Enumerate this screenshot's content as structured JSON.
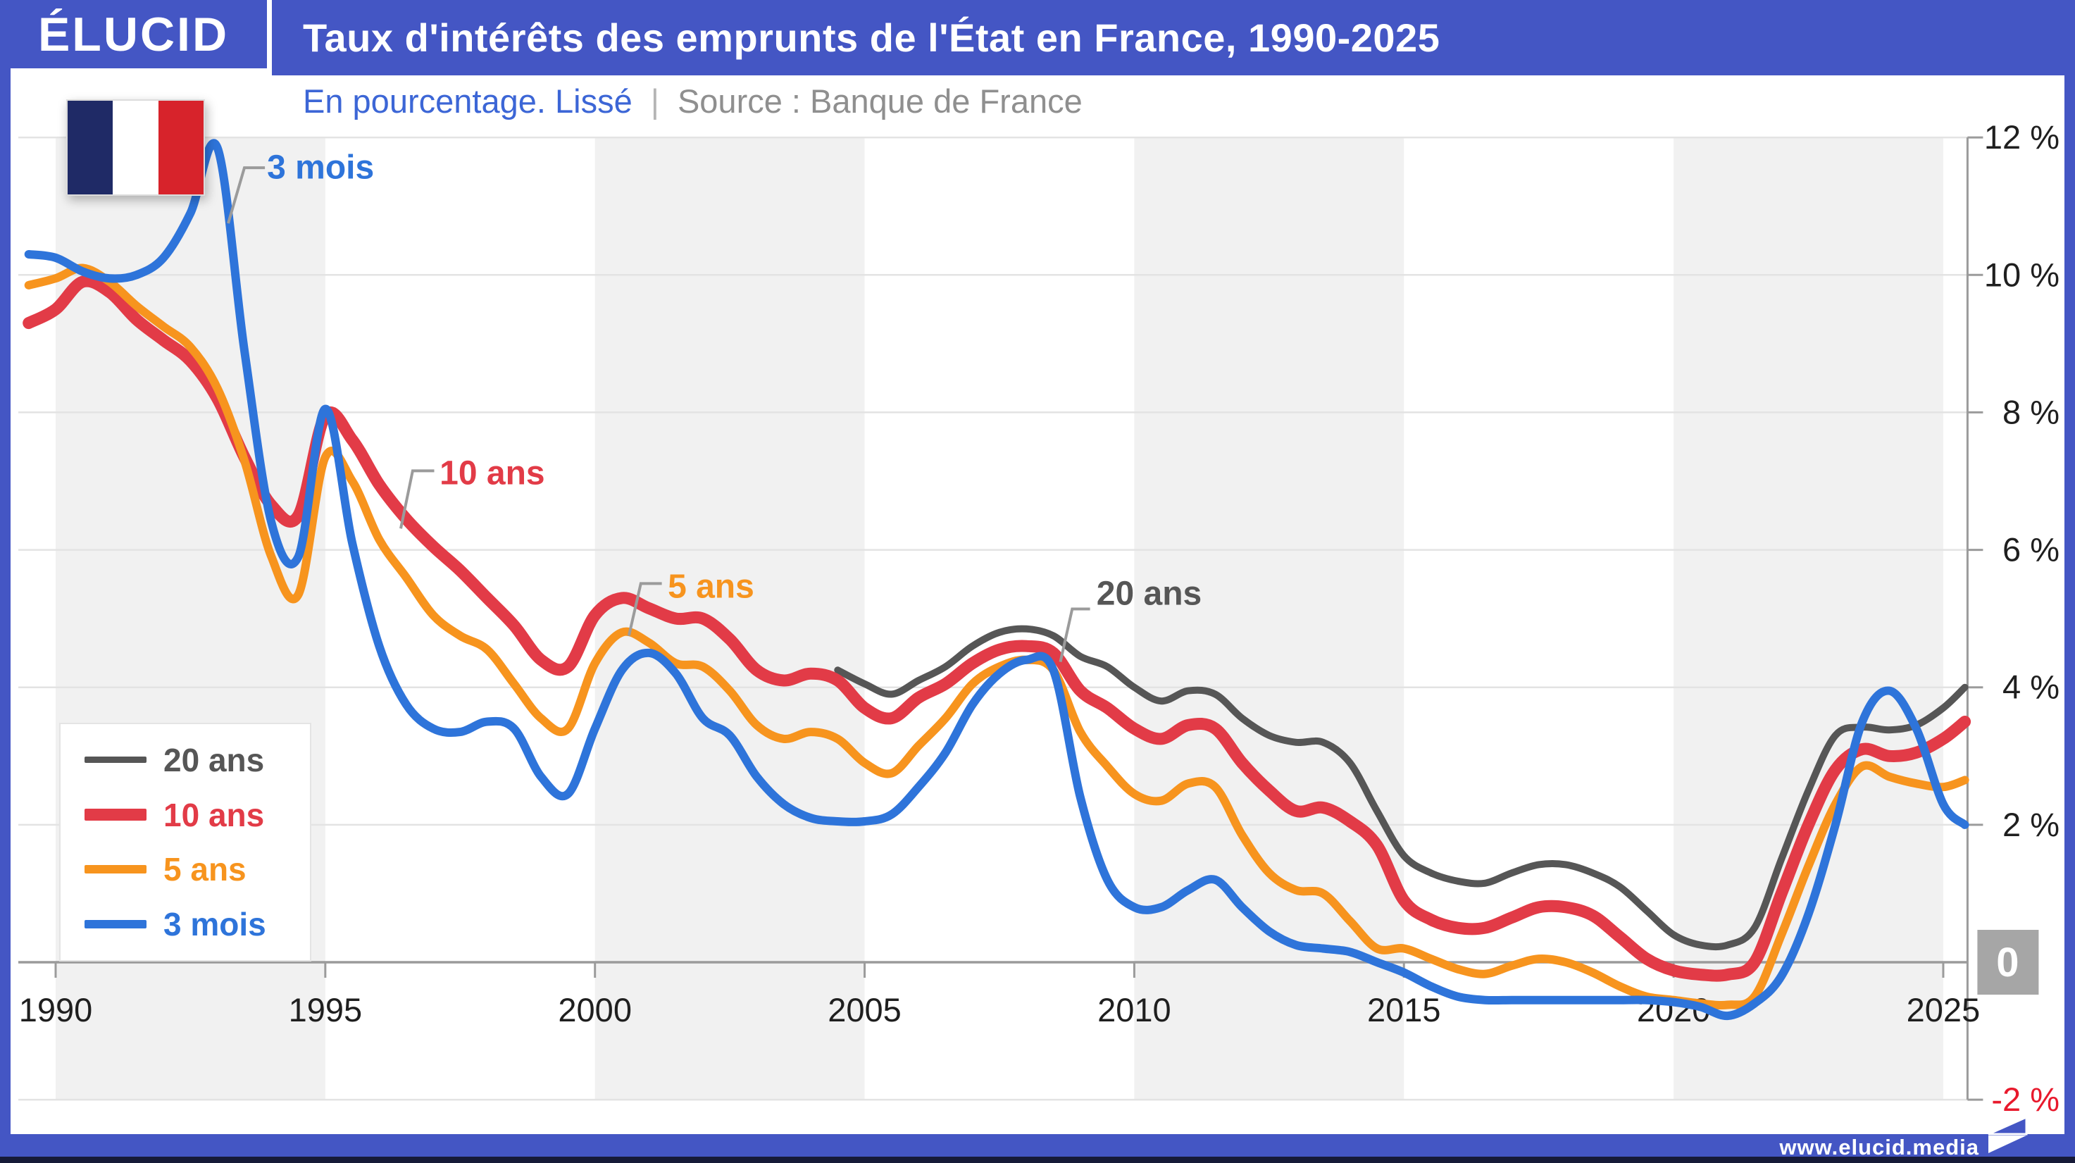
{
  "colors": {
    "brand_blue": "#4456c4",
    "footer_dark": "#161a38",
    "band_gray": "#f1f1f1",
    "gridline": "#e3e3e3",
    "axis_gray": "#9b9b9b",
    "tick_label": "#1f1f1f",
    "negative_label_red": "#e8192c",
    "zero_box_gray": "#a6a6a6",
    "subtitle_blue": "#3c66d6",
    "subtitle_gray": "#8f8f8f"
  },
  "header": {
    "logo": "ÉLUCID",
    "title": "Taux d'intérêts des emprunts de l'État en France, 1990-2025"
  },
  "subtitle": {
    "note": "En pourcentage. Lissé",
    "separator": "|",
    "source": "Source : Banque de France"
  },
  "flag": {
    "name": "french-flag",
    "stripe_colors": [
      "#1f2a66",
      "#ffffff",
      "#d7232b"
    ]
  },
  "legend": {
    "items": [
      {
        "label": "20 ans",
        "color": "#565656",
        "thickness": 9
      },
      {
        "label": "10 ans",
        "color": "#e23b47",
        "thickness": 17
      },
      {
        "label": "5 ans",
        "color": "#f7941e",
        "thickness": 12
      },
      {
        "label": "3 mois",
        "color": "#2e74da",
        "thickness": 12
      }
    ]
  },
  "footer": {
    "url": "www.elucid.media"
  },
  "chart_data": {
    "type": "line",
    "title": "Taux d'intérêts des emprunts de l'État en France, 1990-2025",
    "subtitle": "En pourcentage. Lissé",
    "source": "Source : Banque de France",
    "xlabel": "",
    "ylabel": "%",
    "xlim": [
      1989.5,
      2025.7
    ],
    "ylim": [
      -2,
      12
    ],
    "grid": true,
    "legend_position": "middle-left",
    "x_ticks": [
      1990,
      1995,
      2000,
      2005,
      2010,
      2015,
      2020,
      2025
    ],
    "y_ticks": [
      {
        "value": 12,
        "label": "12 %"
      },
      {
        "value": 10,
        "label": "10 %"
      },
      {
        "value": 8,
        "label": "8 %"
      },
      {
        "value": 6,
        "label": "6 %"
      },
      {
        "value": 4,
        "label": "4 %"
      },
      {
        "value": 2,
        "label": "2 %"
      },
      {
        "value": 0,
        "label": "0",
        "boxed": true
      },
      {
        "value": -2,
        "label": "-2 %",
        "color": "#e8192c"
      }
    ],
    "shaded_bands": [
      [
        1990,
        1995
      ],
      [
        2000,
        2005
      ],
      [
        2010,
        2015
      ],
      [
        2020,
        2025
      ]
    ],
    "x": [
      1989.5,
      1990,
      1990.5,
      1991,
      1991.5,
      1992,
      1992.5,
      1993,
      1993.5,
      1994,
      1994.5,
      1995,
      1995.5,
      1996,
      1996.5,
      1997,
      1997.5,
      1998,
      1998.5,
      1999,
      1999.5,
      2000,
      2000.5,
      2001,
      2001.5,
      2002,
      2002.5,
      2003,
      2003.5,
      2004,
      2004.5,
      2005,
      2005.5,
      2006,
      2006.5,
      2007,
      2007.5,
      2008,
      2008.5,
      2009,
      2009.5,
      2010,
      2010.5,
      2011,
      2011.5,
      2012,
      2012.5,
      2013,
      2013.5,
      2014,
      2014.5,
      2015,
      2015.5,
      2016,
      2016.5,
      2017,
      2017.5,
      2018,
      2018.5,
      2019,
      2019.5,
      2020,
      2020.5,
      2021,
      2021.5,
      2022,
      2022.5,
      2023,
      2023.5,
      2024,
      2024.5,
      2025,
      2025.4
    ],
    "series": [
      {
        "name": "20 ans",
        "color": "#565656",
        "width": 10,
        "values": [
          null,
          null,
          null,
          null,
          null,
          null,
          null,
          null,
          null,
          null,
          null,
          null,
          null,
          null,
          null,
          null,
          null,
          null,
          null,
          null,
          null,
          null,
          null,
          null,
          null,
          null,
          null,
          null,
          null,
          null,
          4.25,
          4.05,
          3.9,
          4.1,
          4.3,
          4.6,
          4.8,
          4.85,
          4.75,
          4.45,
          4.3,
          4.0,
          3.8,
          3.95,
          3.9,
          3.55,
          3.3,
          3.2,
          3.2,
          2.9,
          2.2,
          1.55,
          1.3,
          1.18,
          1.15,
          1.3,
          1.42,
          1.42,
          1.3,
          1.1,
          0.75,
          0.4,
          0.25,
          0.25,
          0.5,
          1.5,
          2.5,
          3.3,
          3.42,
          3.38,
          3.45,
          3.7,
          4.0
        ]
      },
      {
        "name": "10 ans",
        "color": "#e23b47",
        "width": 17,
        "values": [
          9.3,
          9.5,
          9.9,
          9.75,
          9.35,
          9.05,
          8.75,
          8.2,
          7.35,
          6.65,
          6.5,
          7.95,
          7.6,
          6.95,
          6.45,
          6.05,
          5.7,
          5.3,
          4.9,
          4.4,
          4.3,
          5.05,
          5.3,
          5.15,
          5.0,
          5.0,
          4.7,
          4.25,
          4.1,
          4.2,
          4.1,
          3.7,
          3.55,
          3.85,
          4.05,
          4.35,
          4.55,
          4.6,
          4.5,
          3.95,
          3.7,
          3.4,
          3.25,
          3.45,
          3.4,
          2.9,
          2.5,
          2.2,
          2.25,
          2.05,
          1.7,
          0.9,
          0.62,
          0.5,
          0.5,
          0.65,
          0.8,
          0.8,
          0.68,
          0.37,
          0.05,
          -0.12,
          -0.18,
          -0.18,
          0.0,
          1.0,
          2.0,
          2.8,
          3.1,
          3.0,
          3.05,
          3.25,
          3.5
        ]
      },
      {
        "name": "5 ans",
        "color": "#f7941e",
        "width": 12,
        "values": [
          9.85,
          9.95,
          10.1,
          9.9,
          9.55,
          9.25,
          8.95,
          8.35,
          7.3,
          5.9,
          5.35,
          7.35,
          7.0,
          6.15,
          5.6,
          5.05,
          4.75,
          4.55,
          4.05,
          3.55,
          3.4,
          4.35,
          4.8,
          4.65,
          4.35,
          4.3,
          3.95,
          3.45,
          3.25,
          3.35,
          3.25,
          2.9,
          2.75,
          3.15,
          3.55,
          4.05,
          4.3,
          4.4,
          4.25,
          3.35,
          2.85,
          2.45,
          2.35,
          2.6,
          2.55,
          1.85,
          1.3,
          1.05,
          1.0,
          0.6,
          0.2,
          0.2,
          0.05,
          -0.1,
          -0.17,
          -0.05,
          0.05,
          0.0,
          -0.15,
          -0.35,
          -0.5,
          -0.55,
          -0.6,
          -0.62,
          -0.5,
          0.4,
          1.4,
          2.3,
          2.85,
          2.7,
          2.6,
          2.55,
          2.65
        ]
      },
      {
        "name": "3 mois",
        "color": "#2e74da",
        "width": 12,
        "values": [
          10.3,
          10.25,
          10.05,
          9.95,
          10.0,
          10.25,
          10.9,
          11.85,
          8.9,
          6.4,
          5.9,
          8.05,
          6.1,
          4.6,
          3.75,
          3.4,
          3.35,
          3.5,
          3.4,
          2.7,
          2.45,
          3.4,
          4.25,
          4.5,
          4.2,
          3.55,
          3.3,
          2.7,
          2.3,
          2.1,
          2.05,
          2.05,
          2.15,
          2.55,
          3.05,
          3.75,
          4.2,
          4.4,
          4.25,
          2.4,
          1.2,
          0.8,
          0.8,
          1.05,
          1.2,
          0.8,
          0.45,
          0.25,
          0.2,
          0.15,
          0.0,
          -0.15,
          -0.35,
          -0.5,
          -0.55,
          -0.55,
          -0.55,
          -0.55,
          -0.55,
          -0.55,
          -0.55,
          -0.58,
          -0.65,
          -0.78,
          -0.6,
          -0.2,
          0.7,
          2.0,
          3.5,
          3.95,
          3.4,
          2.3,
          2.0
        ]
      }
    ],
    "annotations": [
      {
        "label": "3 mois",
        "color": "#2e74da",
        "text_at": [
          1993.92,
          11.55
        ],
        "leader": [
          [
            1993.2,
            10.75
          ],
          [
            1993.5,
            11.56
          ],
          [
            1993.88,
            11.56
          ]
        ]
      },
      {
        "label": "10 ans",
        "color": "#e23b47",
        "text_at": [
          1997.12,
          7.1
        ],
        "leader": [
          [
            1996.4,
            6.31
          ],
          [
            1996.62,
            7.15
          ],
          [
            1997.02,
            7.15
          ]
        ]
      },
      {
        "label": "5 ans",
        "color": "#f7941e",
        "text_at": [
          2001.35,
          5.45
        ],
        "leader": [
          [
            2000.63,
            4.75
          ],
          [
            2000.85,
            5.51
          ],
          [
            2001.24,
            5.51
          ]
        ]
      },
      {
        "label": "20 ans",
        "color": "#565656",
        "text_at": [
          2009.3,
          5.35
        ],
        "leader": [
          [
            2008.63,
            4.37
          ],
          [
            2008.85,
            5.14
          ],
          [
            2009.18,
            5.14
          ]
        ]
      }
    ]
  }
}
